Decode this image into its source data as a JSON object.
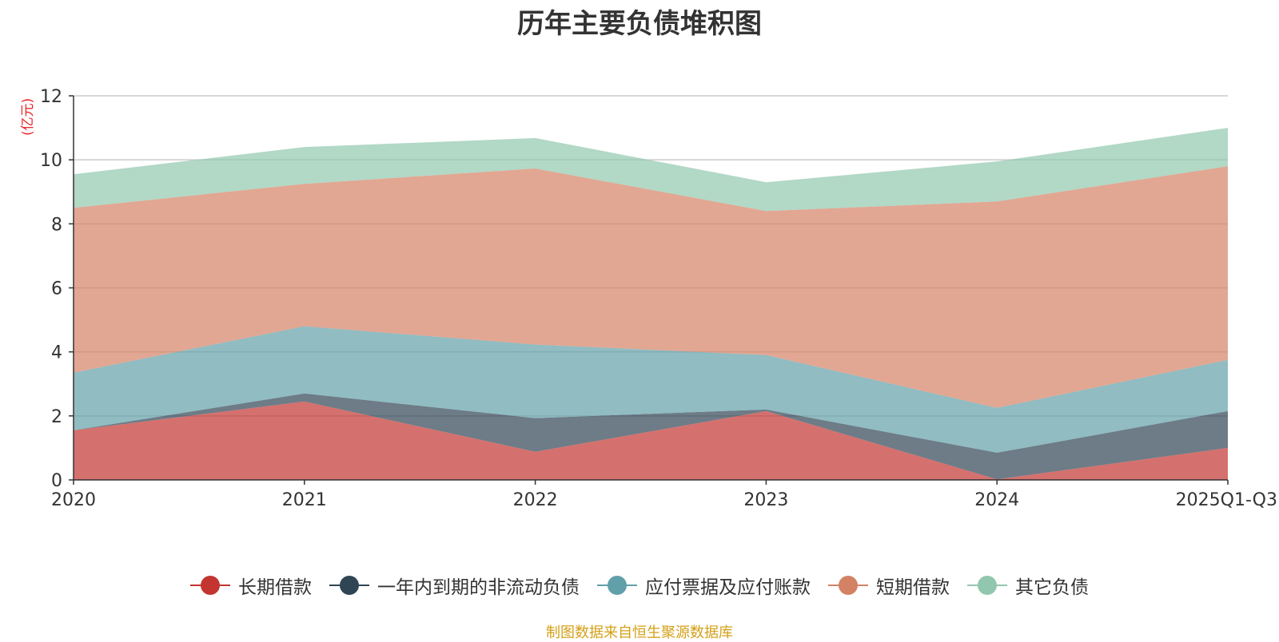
{
  "chart_data": {
    "type": "area",
    "stacked": true,
    "title": "历年主要负债堆积图",
    "ylabel": "(亿元)",
    "xlabel": "",
    "categories": [
      "2020",
      "2021",
      "2022",
      "2023",
      "2024",
      "2025Q1-Q3"
    ],
    "ylim": [
      0,
      12
    ],
    "yticks": [
      0,
      2,
      4,
      6,
      8,
      10,
      12
    ],
    "grid": true,
    "legend_position": "bottom",
    "series": [
      {
        "name": "长期借款",
        "color": "#c23531",
        "values": [
          1.55,
          2.45,
          0.88,
          2.15,
          0.02,
          1.0
        ]
      },
      {
        "name": "一年内到期的非流动负债",
        "color": "#2f4554",
        "values": [
          0.0,
          0.25,
          1.05,
          0.05,
          0.83,
          1.15
        ]
      },
      {
        "name": "应付票据及应付账款",
        "color": "#61a0a8",
        "values": [
          1.8,
          2.1,
          2.3,
          1.7,
          1.4,
          1.6
        ]
      },
      {
        "name": "短期借款",
        "color": "#d48265",
        "values": [
          5.15,
          4.45,
          5.5,
          4.5,
          6.45,
          6.05
        ]
      },
      {
        "name": "其它负债",
        "color": "#91c7ae",
        "values": [
          1.05,
          1.15,
          0.95,
          0.9,
          1.25,
          1.2
        ]
      }
    ]
  },
  "source_text": "制图数据来自恒生聚源数据库"
}
